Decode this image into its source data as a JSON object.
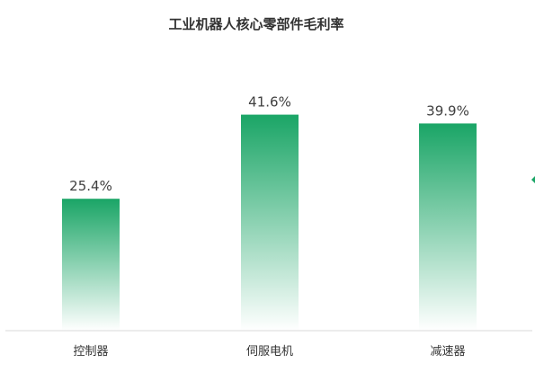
{
  "chart_data": {
    "type": "bar",
    "title": "工业机器人核心零部件毛利率",
    "categories": [
      "控制器",
      "伺服电机",
      "减速器"
    ],
    "values": [
      25.4,
      41.6,
      39.9
    ],
    "data_labels": [
      "25.4%",
      "41.6%",
      "39.9%"
    ],
    "value_unit": "%",
    "xlabel": "",
    "ylabel": "",
    "ylim": [
      0,
      50
    ],
    "grid": false,
    "legend": "none",
    "colors": {
      "bar_top": "#1aa566",
      "bar_bottom": "#ffffff",
      "baseline": "#d9d9d9",
      "marker": "#1aa566"
    }
  }
}
